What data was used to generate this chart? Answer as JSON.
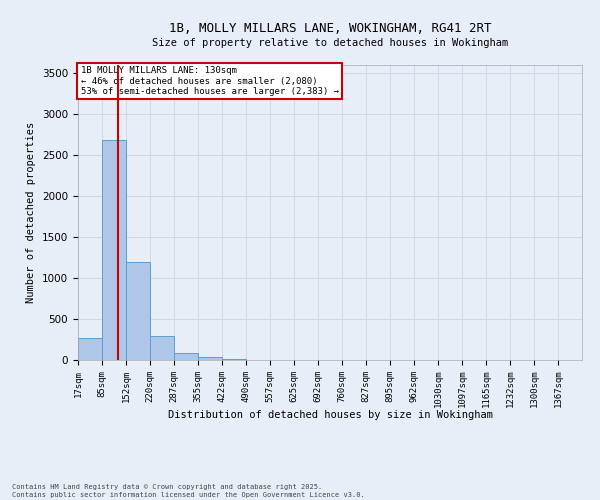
{
  "title_line1": "1B, MOLLY MILLARS LANE, WOKINGHAM, RG41 2RT",
  "title_line2": "Size of property relative to detached houses in Wokingham",
  "xlabel": "Distribution of detached houses by size in Wokingham",
  "ylabel": "Number of detached properties",
  "bar_labels": [
    "17sqm",
    "85sqm",
    "152sqm",
    "220sqm",
    "287sqm",
    "355sqm",
    "422sqm",
    "490sqm",
    "557sqm",
    "625sqm",
    "692sqm",
    "760sqm",
    "827sqm",
    "895sqm",
    "962sqm",
    "1030sqm",
    "1097sqm",
    "1165sqm",
    "1232sqm",
    "1300sqm",
    "1367sqm"
  ],
  "bar_values": [
    270,
    2680,
    1190,
    290,
    80,
    35,
    15,
    0,
    0,
    0,
    0,
    0,
    0,
    0,
    0,
    0,
    0,
    0,
    0,
    0,
    0
  ],
  "bar_color": "#aec6e8",
  "bar_edge_color": "#5a9fd4",
  "grid_color": "#d0d8e8",
  "background_color": "#e8eef8",
  "property_line_x": 130,
  "bin_edges": [
    17,
    85,
    152,
    220,
    287,
    355,
    422,
    490,
    557,
    625,
    692,
    760,
    827,
    895,
    962,
    1030,
    1097,
    1165,
    1232,
    1300,
    1367,
    1434
  ],
  "annotation_text": "1B MOLLY MILLARS LANE: 130sqm\n← 46% of detached houses are smaller (2,080)\n53% of semi-detached houses are larger (2,383) →",
  "annotation_box_color": "#ffffff",
  "annotation_box_edge": "#cc0000",
  "red_line_color": "#cc0000",
  "ylim": [
    0,
    3600
  ],
  "yticks": [
    0,
    500,
    1000,
    1500,
    2000,
    2500,
    3000,
    3500
  ],
  "footer_line1": "Contains HM Land Registry data © Crown copyright and database right 2025.",
  "footer_line2": "Contains public sector information licensed under the Open Government Licence v3.0."
}
